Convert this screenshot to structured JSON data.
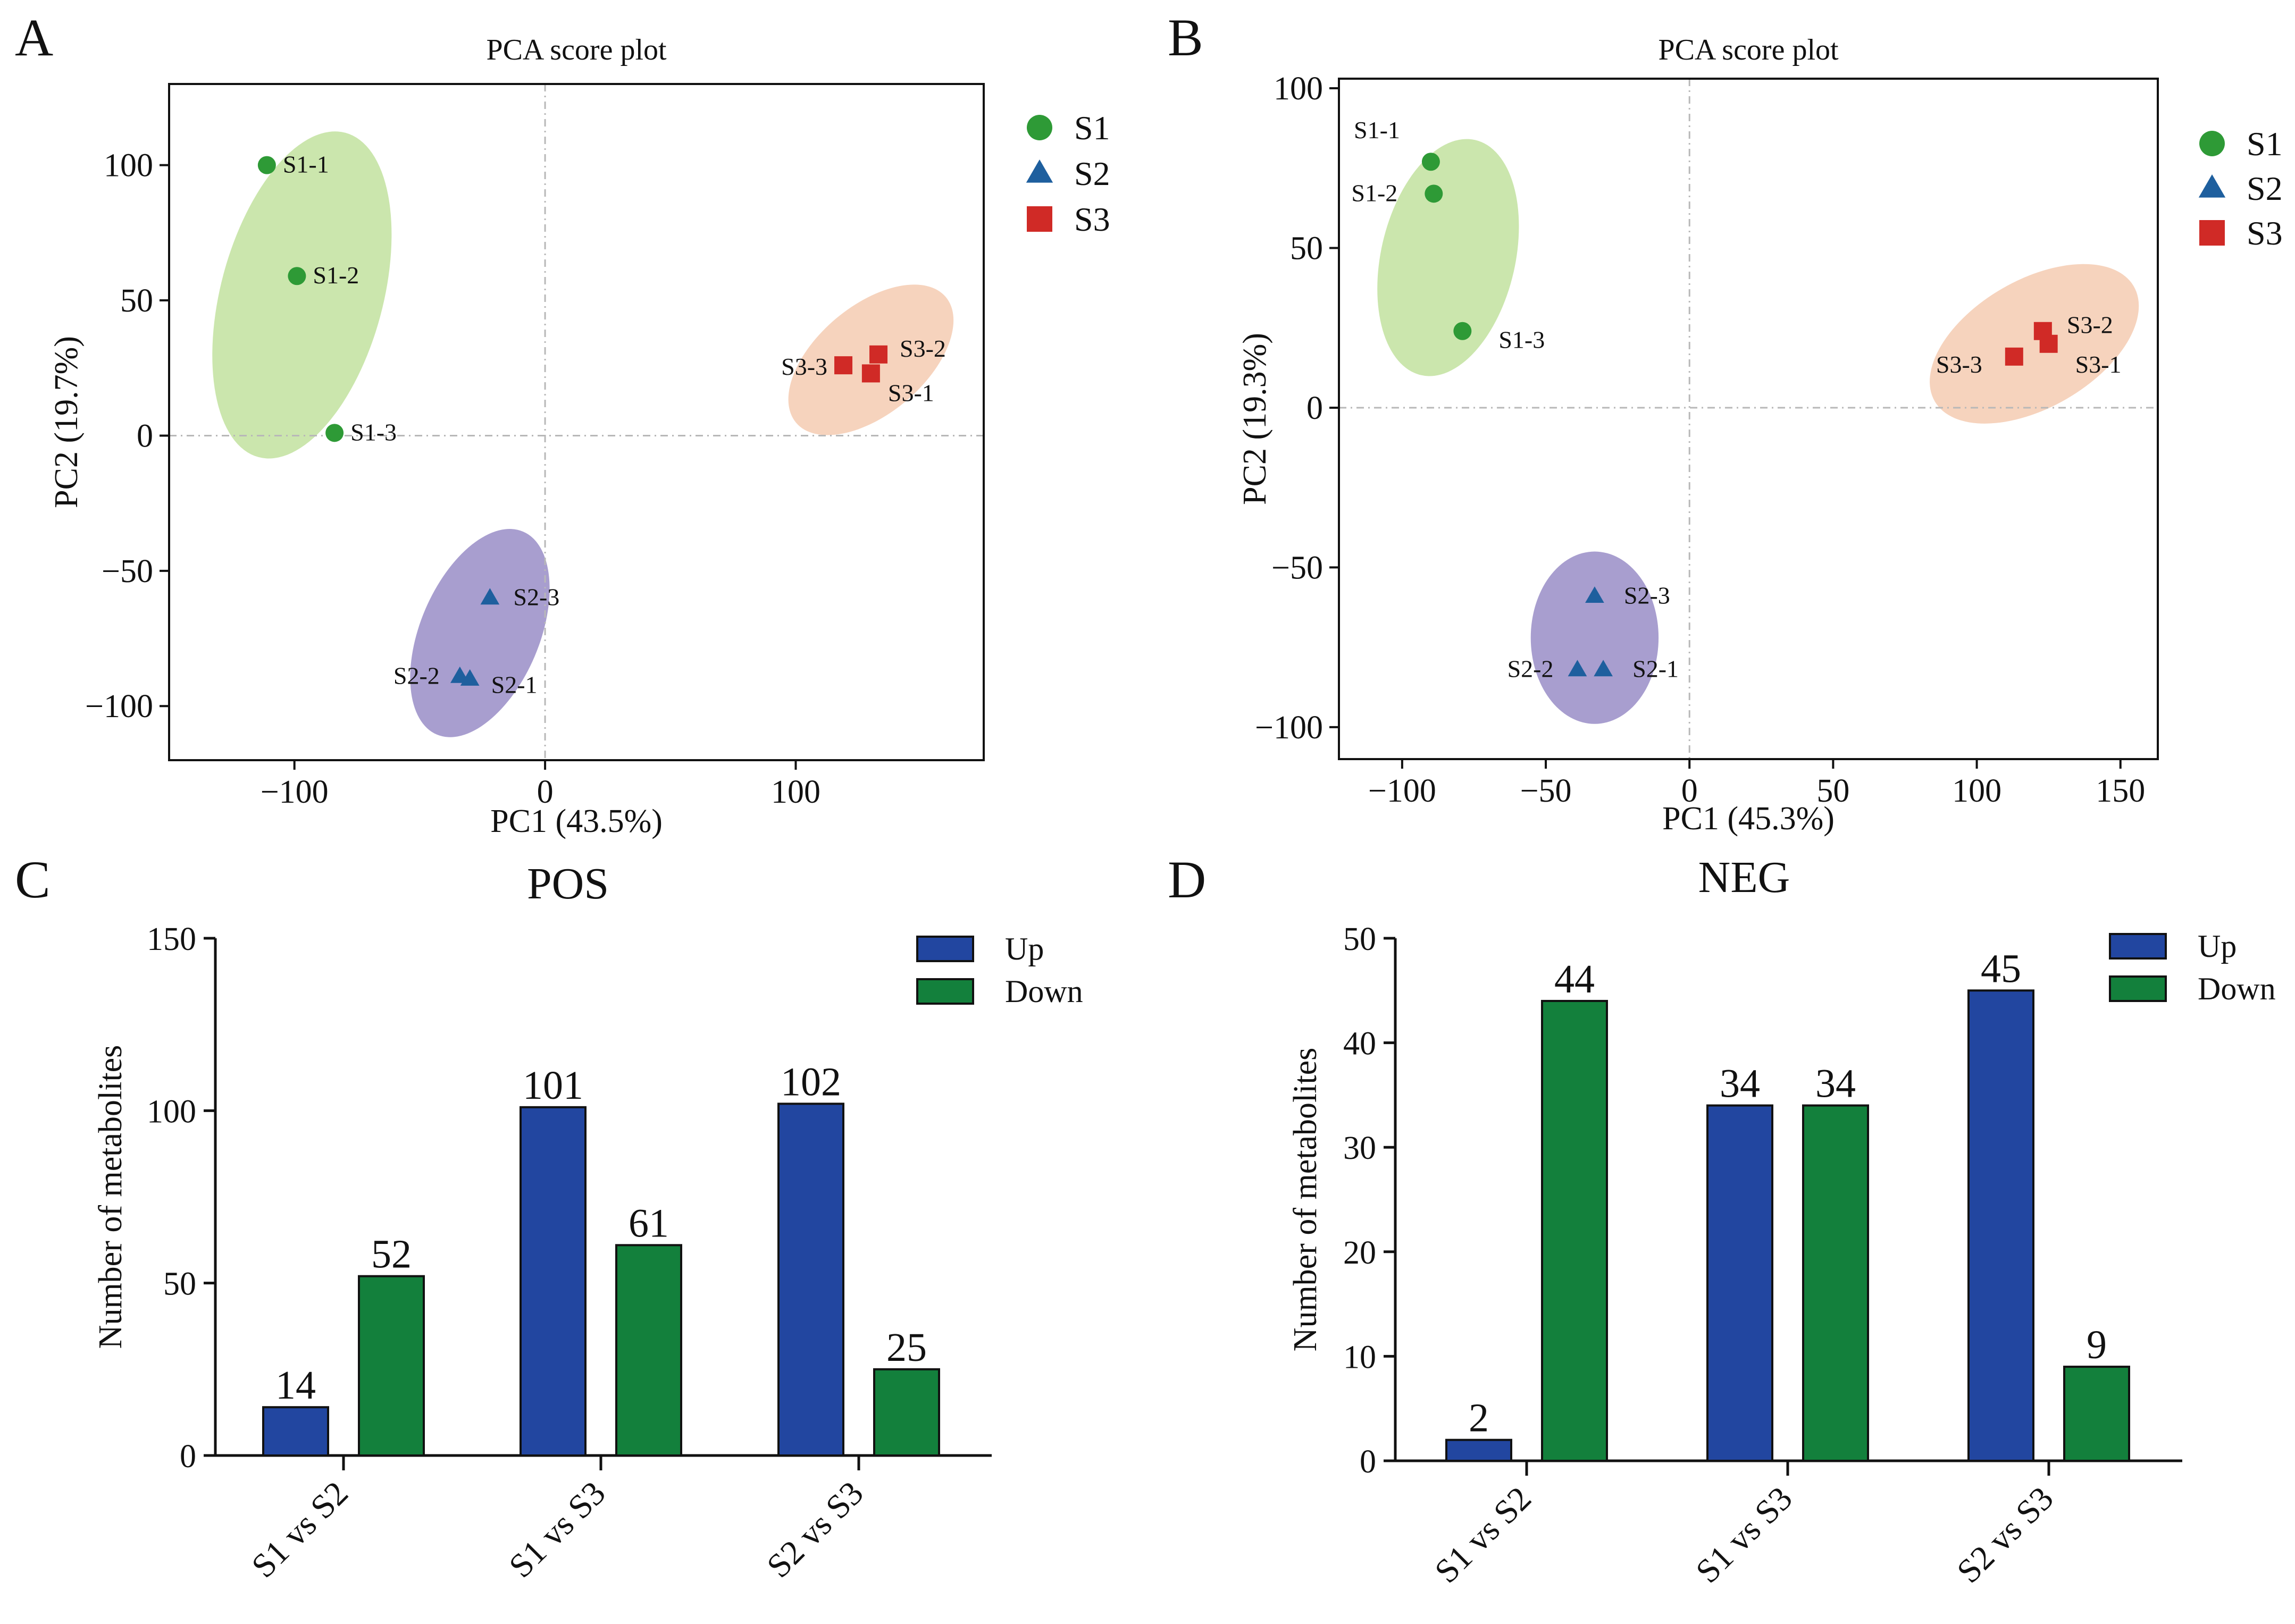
{
  "colors": {
    "S1": "#2e9a36",
    "S2": "#1e5f9e",
    "S3": "#d02a26",
    "S1_ellipse": "#cbe6ad",
    "S2_ellipse": "#a89ecf",
    "S3_ellipse": "#f6d3bd",
    "up": "#2246a0",
    "down": "#13803c"
  },
  "chart_data": [
    {
      "panel": "A",
      "type": "scatter",
      "title": "PCA score plot",
      "xlabel": "PC1 (43.5%)",
      "ylabel": "PC2 (19.7%)",
      "xlim": [
        -150,
        175
      ],
      "ylim": [
        -120,
        130
      ],
      "xticks": [
        -100,
        0,
        100
      ],
      "yticks": [
        -100,
        -50,
        0,
        50,
        100
      ],
      "xtick_labels": [
        "−100",
        "0",
        "100"
      ],
      "ytick_labels": [
        "−100",
        "−50",
        "0",
        "50",
        "100"
      ],
      "legend": [
        {
          "name": "S1",
          "shape": "circle"
        },
        {
          "name": "S2",
          "shape": "triangle"
        },
        {
          "name": "S3",
          "shape": "square"
        }
      ],
      "ellipses": [
        {
          "group": "S1",
          "cx": -97,
          "cy": 52,
          "rx": 67,
          "ry": 30,
          "angle": 75
        },
        {
          "group": "S2",
          "cx": -26,
          "cy": -73,
          "rx": 44,
          "ry": 22,
          "angle": 67
        },
        {
          "group": "S3",
          "cx": 130,
          "cy": 28,
          "rx": 39,
          "ry": 20,
          "angle": 40
        }
      ],
      "points": [
        {
          "label": "S1-1",
          "group": "S1",
          "x": -111,
          "y": 100
        },
        {
          "label": "S1-2",
          "group": "S1",
          "x": -99,
          "y": 59
        },
        {
          "label": "S1-3",
          "group": "S1",
          "x": -84,
          "y": 1
        },
        {
          "label": "S2-1",
          "group": "S2",
          "x": -30,
          "y": -90
        },
        {
          "label": "S2-2",
          "group": "S2",
          "x": -34,
          "y": -89
        },
        {
          "label": "S2-3",
          "group": "S2",
          "x": -22,
          "y": -60
        },
        {
          "label": "S3-1",
          "group": "S3",
          "x": 130,
          "y": 23
        },
        {
          "label": "S3-2",
          "group": "S3",
          "x": 133,
          "y": 30
        },
        {
          "label": "S3-3",
          "group": "S3",
          "x": 119,
          "y": 26
        }
      ]
    },
    {
      "panel": "B",
      "type": "scatter",
      "title": "PCA score plot",
      "xlabel": "PC1 (45.3%)",
      "ylabel": "PC2 (19.3%)",
      "xlim": [
        -122,
        163
      ],
      "ylim": [
        -110,
        103
      ],
      "xticks": [
        -100,
        -50,
        0,
        50,
        100,
        150
      ],
      "yticks": [
        -100,
        -50,
        0,
        50,
        100
      ],
      "xtick_labels": [
        "−100",
        "−50",
        "0",
        "50",
        "100",
        "150"
      ],
      "ytick_labels": [
        "−100",
        "−50",
        "0",
        "50",
        "100"
      ],
      "legend": [
        {
          "name": "S1",
          "shape": "circle"
        },
        {
          "name": "S2",
          "shape": "triangle"
        },
        {
          "name": "S3",
          "shape": "square"
        }
      ],
      "ellipses": [
        {
          "group": "S1",
          "cx": -84,
          "cy": 47,
          "rx": 42,
          "ry": 21,
          "angle": 77
        },
        {
          "group": "S2",
          "cx": -33,
          "cy": -72,
          "rx": 30,
          "ry": 20,
          "angle": 90
        },
        {
          "group": "S3",
          "cx": 120,
          "cy": 20,
          "rx": 40,
          "ry": 20,
          "angle": 30
        }
      ],
      "points": [
        {
          "label": "S1-1",
          "group": "S1",
          "x": -90,
          "y": 77
        },
        {
          "label": "S1-2",
          "group": "S1",
          "x": -89,
          "y": 67
        },
        {
          "label": "S1-3",
          "group": "S1",
          "x": -79,
          "y": 24
        },
        {
          "label": "S2-1",
          "group": "S2",
          "x": -30,
          "y": -82
        },
        {
          "label": "S2-2",
          "group": "S2",
          "x": -39,
          "y": -82
        },
        {
          "label": "S2-3",
          "group": "S2",
          "x": -33,
          "y": -59
        },
        {
          "label": "S3-1",
          "group": "S3",
          "x": 125,
          "y": 20
        },
        {
          "label": "S3-2",
          "group": "S3",
          "x": 123,
          "y": 24
        },
        {
          "label": "S3-3",
          "group": "S3",
          "x": 113,
          "y": 16
        }
      ]
    },
    {
      "panel": "C",
      "type": "bar",
      "title": "POS",
      "xlabel": "",
      "ylabel": "Number of metabolites",
      "ylim": [
        0,
        150
      ],
      "yticks": [
        0,
        50,
        100,
        150
      ],
      "categories": [
        "S1 vs S2",
        "S1 vs S3",
        "S2 vs S3"
      ],
      "series": [
        {
          "name": "Up",
          "values": [
            14,
            101,
            102
          ]
        },
        {
          "name": "Down",
          "values": [
            52,
            61,
            25
          ]
        }
      ]
    },
    {
      "panel": "D",
      "type": "bar",
      "title": "NEG",
      "xlabel": "",
      "ylabel": "Number of metabolites",
      "ylim": [
        0,
        50
      ],
      "yticks": [
        0,
        10,
        20,
        30,
        40,
        50
      ],
      "categories": [
        "S1 vs S2",
        "S1 vs S3",
        "S2 vs S3"
      ],
      "series": [
        {
          "name": "Up",
          "values": [
            2,
            34,
            45
          ]
        },
        {
          "name": "Down",
          "values": [
            44,
            34,
            9
          ]
        }
      ]
    }
  ]
}
